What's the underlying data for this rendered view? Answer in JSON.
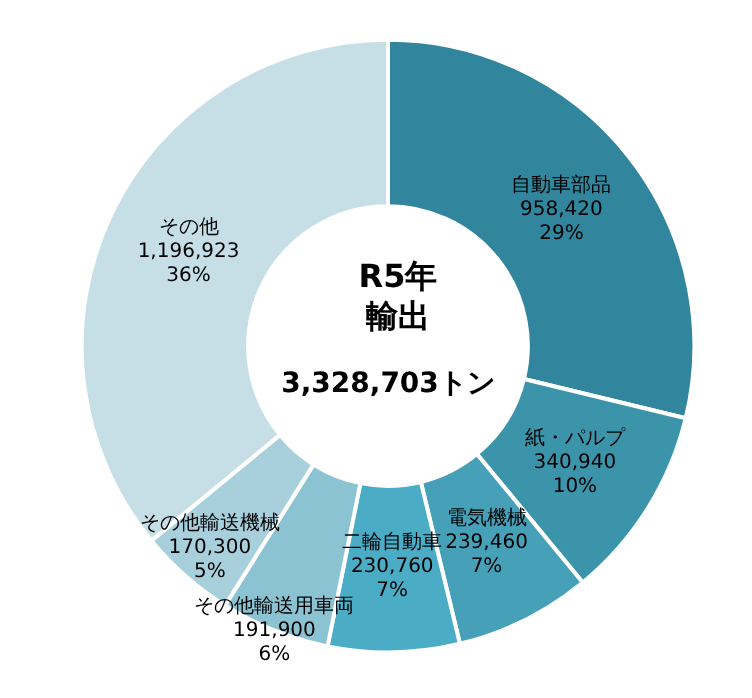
{
  "chart_data": {
    "type": "donut",
    "title": "R5年",
    "subtitle": "輸出",
    "annotations": [
      "3,328,703トン"
    ],
    "categories": [
      "自動車部品",
      "紙・パルプ",
      "電気機械",
      "二輪自動車",
      "その他輸送用車両",
      "その他輸送機械",
      "その他"
    ],
    "values": [
      958420,
      340940,
      239460,
      230760,
      191900,
      170300,
      1196923
    ],
    "value_labels": [
      "958,420\n29%",
      "340,940\n10%",
      "239,460\n7%",
      "230,760\n7%",
      "191,900\n6%",
      "170,300\n5%",
      "1,196,923\n36%"
    ],
    "colors": [
      "#31859c",
      "#3b94aa",
      "#45a0b8",
      "#4bacc6",
      "#8cc3d3",
      "#a8d0dc",
      "#c6dfe7"
    ],
    "legend": false
  }
}
